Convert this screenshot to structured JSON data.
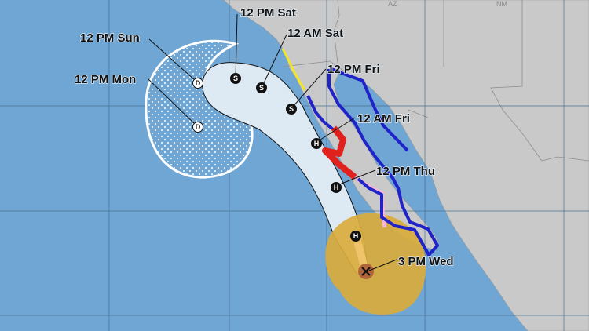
{
  "map": {
    "colors": {
      "ocean": "#6fa6d3",
      "land": "#c9c9c9",
      "cone": "#dde9f3",
      "tropical_storm_wind_area": "#d9ab3c",
      "hurricane_wind_area": "#b0643a",
      "hurricane_warning": "#e0211d",
      "tropical_storm_warning": "#1f23c8",
      "tropical_storm_watch": "#f2e62a",
      "hurricane_watch": "#f5b6d8"
    },
    "state_labels": [
      "AZ",
      "NM"
    ],
    "current_position": {
      "label": "3 PM Wed",
      "icon": "x-icon"
    },
    "forecast_points": [
      {
        "label": "12 PM Thu",
        "symbol": "H"
      },
      {
        "label": "12 AM Fri",
        "symbol": "H"
      },
      {
        "label": "12 PM Fri",
        "symbol": "S"
      },
      {
        "label": "12 AM Sat",
        "symbol": "S"
      },
      {
        "label": "12 PM Sat",
        "symbol": "S"
      },
      {
        "label": "12 PM Sun",
        "symbol": "D"
      },
      {
        "label": "12 PM Mon",
        "symbol": "D"
      }
    ],
    "extra_points": [
      {
        "symbol": "H"
      }
    ]
  }
}
